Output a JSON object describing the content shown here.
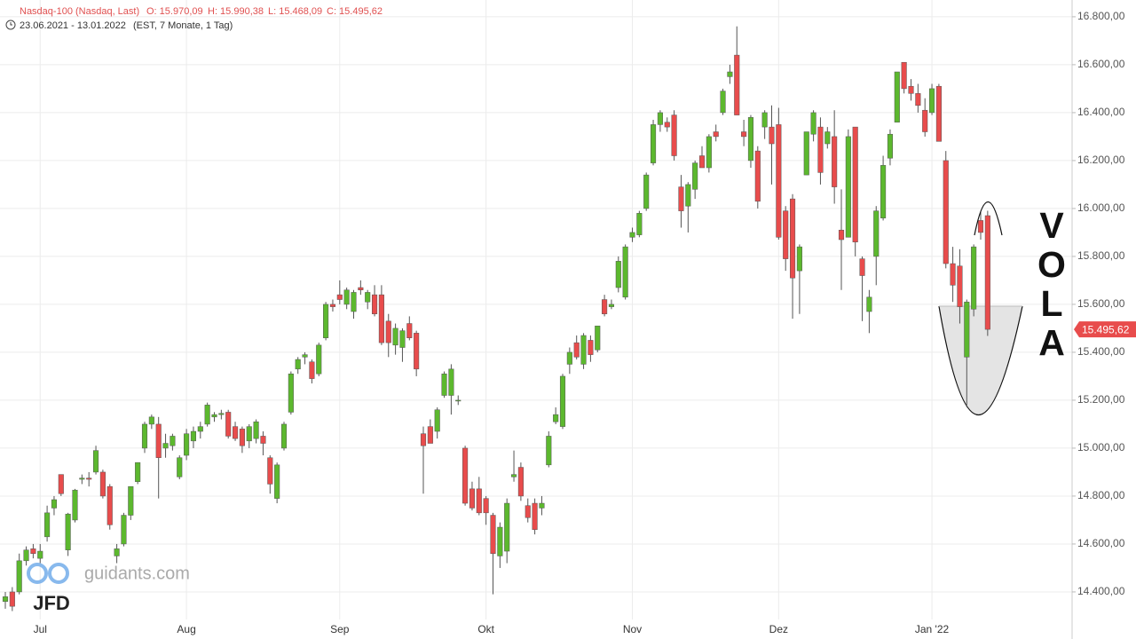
{
  "chart_data": {
    "type": "candlestick",
    "title": "Nasdaq-100 (Nasdaq, Last)",
    "ohlc_labels": [
      "O: 15.970,09",
      "H: 15.990,38",
      "L: 15.468,09",
      "C: 15.495,62"
    ],
    "subtitle": "23.06.2021 - 13.01.2022",
    "subtitle_note": "(EST, 7 Monate, 1 Tag)",
    "annotation": "VOLA",
    "watermark": "guidants.com",
    "logo": "JFD",
    "last_price_label": "15.495,62",
    "up_color": "#5cb82e",
    "down_color": "#e84c4c",
    "grid": true,
    "ylim": [
      14285,
      16870
    ],
    "yticks": [
      {
        "value": 14400,
        "label": "14.400,00"
      },
      {
        "value": 14600,
        "label": "14.600,00"
      },
      {
        "value": 14800,
        "label": "14.800,00"
      },
      {
        "value": 15000,
        "label": "15.000,00"
      },
      {
        "value": 15200,
        "label": "15.200,00"
      },
      {
        "value": 15400,
        "label": "15.400,00"
      },
      {
        "value": 15600,
        "label": "15.600,00"
      },
      {
        "value": 15800,
        "label": "15.800,00"
      },
      {
        "value": 16000,
        "label": "16.000,00"
      },
      {
        "value": 16200,
        "label": "16.200,00"
      },
      {
        "value": 16400,
        "label": "16.400,00"
      },
      {
        "value": 16600,
        "label": "16.600,00"
      },
      {
        "value": 16800,
        "label": "16.800,00"
      }
    ],
    "categories": [
      null,
      null,
      null,
      null,
      null,
      "Jul",
      null,
      null,
      null,
      null,
      null,
      null,
      null,
      null,
      null,
      null,
      null,
      null,
      null,
      null,
      null,
      null,
      null,
      null,
      null,
      null,
      "Aug",
      null,
      null,
      null,
      null,
      null,
      null,
      null,
      null,
      null,
      null,
      null,
      null,
      null,
      null,
      null,
      null,
      null,
      null,
      null,
      null,
      null,
      "Sep",
      null,
      null,
      null,
      null,
      null,
      null,
      null,
      null,
      null,
      null,
      null,
      null,
      null,
      null,
      null,
      null,
      null,
      null,
      null,
      null,
      "Okt",
      null,
      null,
      null,
      null,
      null,
      null,
      null,
      null,
      null,
      null,
      null,
      null,
      null,
      null,
      null,
      null,
      null,
      null,
      null,
      null,
      "Nov",
      null,
      null,
      null,
      null,
      null,
      null,
      null,
      null,
      null,
      null,
      null,
      null,
      null,
      null,
      null,
      null,
      null,
      null,
      null,
      null,
      "Dez",
      null,
      null,
      null,
      null,
      null,
      null,
      null,
      null,
      null,
      null,
      null,
      null,
      null,
      null,
      null,
      null,
      null,
      null,
      null,
      null,
      null,
      "Jan '22",
      null,
      null,
      null,
      null,
      null,
      null,
      null,
      null
    ],
    "ohlc": [
      [
        14360,
        14400,
        14330,
        14380
      ],
      [
        14400,
        14420,
        14320,
        14340
      ],
      [
        14400,
        14560,
        14390,
        14530
      ],
      [
        14530,
        14590,
        14510,
        14575
      ],
      [
        14580,
        14600,
        14540,
        14560
      ],
      [
        14540,
        14600,
        14520,
        14570
      ],
      [
        14630,
        14760,
        14610,
        14730
      ],
      [
        14750,
        14800,
        14720,
        14785
      ],
      [
        14890,
        14890,
        14800,
        14810
      ],
      [
        14575,
        14730,
        14550,
        14725
      ],
      [
        14700,
        14830,
        14690,
        14825
      ],
      [
        14870,
        14890,
        14850,
        14875
      ],
      [
        14875,
        14900,
        14840,
        14870
      ],
      [
        14900,
        15010,
        14890,
        14990
      ],
      [
        14900,
        14910,
        14790,
        14800
      ],
      [
        14840,
        14850,
        14660,
        14680
      ],
      [
        14550,
        14600,
        14520,
        14580
      ],
      [
        14600,
        14730,
        14590,
        14720
      ],
      [
        14720,
        14840,
        14700,
        14840
      ],
      [
        14860,
        14940,
        14850,
        14940
      ],
      [
        15000,
        15110,
        14980,
        15100
      ],
      [
        15100,
        15140,
        15080,
        15130
      ],
      [
        15100,
        15130,
        14790,
        14960
      ],
      [
        15000,
        15060,
        14960,
        15020
      ],
      [
        15010,
        15060,
        14990,
        15050
      ],
      [
        14880,
        14970,
        14870,
        14960
      ],
      [
        14970,
        15080,
        14950,
        15060
      ],
      [
        15030,
        15090,
        15000,
        15070
      ],
      [
        15070,
        15110,
        15040,
        15090
      ],
      [
        15100,
        15190,
        15090,
        15180
      ],
      [
        15130,
        15150,
        15110,
        15140
      ],
      [
        15140,
        15160,
        15120,
        15145
      ],
      [
        15150,
        15160,
        15040,
        15050
      ],
      [
        15090,
        15110,
        15030,
        15040
      ],
      [
        15080,
        15090,
        14980,
        15010
      ],
      [
        15030,
        15100,
        15000,
        15090
      ],
      [
        15040,
        15120,
        15020,
        15110
      ],
      [
        15050,
        15070,
        14970,
        15020
      ],
      [
        14960,
        14970,
        14810,
        14850
      ],
      [
        14790,
        14940,
        14770,
        14930
      ],
      [
        15000,
        15110,
        14990,
        15100
      ],
      [
        15150,
        15320,
        15140,
        15310
      ],
      [
        15330,
        15380,
        15310,
        15370
      ],
      [
        15380,
        15400,
        15350,
        15390
      ],
      [
        15360,
        15370,
        15270,
        15290
      ],
      [
        15310,
        15440,
        15300,
        15430
      ],
      [
        15460,
        15610,
        15450,
        15600
      ],
      [
        15600,
        15620,
        15570,
        15590
      ],
      [
        15640,
        15700,
        15600,
        15620
      ],
      [
        15600,
        15670,
        15580,
        15660
      ],
      [
        15570,
        15660,
        15540,
        15650
      ],
      [
        15670,
        15700,
        15640,
        15660
      ],
      [
        15610,
        15660,
        15580,
        15650
      ],
      [
        15640,
        15680,
        15550,
        15560
      ],
      [
        15640,
        15680,
        15430,
        15440
      ],
      [
        15530,
        15560,
        15380,
        15440
      ],
      [
        15430,
        15520,
        15390,
        15500
      ],
      [
        15420,
        15500,
        15360,
        15490
      ],
      [
        15520,
        15550,
        15450,
        15460
      ],
      [
        15480,
        15490,
        15300,
        15330
      ],
      [
        15060,
        15090,
        14810,
        15010
      ],
      [
        15090,
        15120,
        15020,
        15020
      ],
      [
        15070,
        15170,
        15040,
        15160
      ],
      [
        15220,
        15320,
        15210,
        15310
      ],
      [
        15220,
        15350,
        15140,
        15330
      ],
      [
        15200,
        15220,
        15180,
        15200
      ],
      [
        15000,
        15010,
        14760,
        14770
      ],
      [
        14830,
        14860,
        14740,
        14750
      ],
      [
        14830,
        14880,
        14720,
        14730
      ],
      [
        14790,
        14800,
        14680,
        14730
      ],
      [
        14720,
        14730,
        14390,
        14560
      ],
      [
        14550,
        14690,
        14500,
        14670
      ],
      [
        14570,
        14790,
        14520,
        14770
      ],
      [
        14880,
        14990,
        14860,
        14890
      ],
      [
        14920,
        14940,
        14780,
        14800
      ],
      [
        14760,
        14790,
        14690,
        14710
      ],
      [
        14770,
        14790,
        14640,
        14660
      ],
      [
        14750,
        14800,
        14720,
        14770
      ],
      [
        14930,
        15070,
        14920,
        15050
      ],
      [
        15110,
        15170,
        15100,
        15140
      ],
      [
        15090,
        15310,
        15080,
        15300
      ],
      [
        15350,
        15420,
        15310,
        15400
      ],
      [
        15440,
        15470,
        15370,
        15380
      ],
      [
        15350,
        15480,
        15330,
        15470
      ],
      [
        15450,
        15470,
        15360,
        15390
      ],
      [
        15410,
        15510,
        15400,
        15510
      ],
      [
        15620,
        15640,
        15550,
        15560
      ],
      [
        15590,
        15620,
        15580,
        15600
      ],
      [
        15670,
        15800,
        15650,
        15780
      ],
      [
        15630,
        15850,
        15620,
        15840
      ],
      [
        15880,
        15920,
        15860,
        15900
      ],
      [
        15890,
        15990,
        15880,
        15980
      ],
      [
        16000,
        16150,
        15990,
        16140
      ],
      [
        16190,
        16370,
        16180,
        16350
      ],
      [
        16350,
        16410,
        16320,
        16400
      ],
      [
        16360,
        16380,
        16320,
        16340
      ],
      [
        16390,
        16410,
        16200,
        16220
      ],
      [
        16090,
        16140,
        15920,
        15990
      ],
      [
        16010,
        16110,
        15900,
        16100
      ],
      [
        16080,
        16200,
        16040,
        16190
      ],
      [
        16220,
        16260,
        16170,
        16170
      ],
      [
        16170,
        16310,
        16150,
        16300
      ],
      [
        16320,
        16350,
        16280,
        16300
      ],
      [
        16400,
        16500,
        16390,
        16490
      ],
      [
        16550,
        16600,
        16520,
        16570
      ],
      [
        16640,
        16760,
        16390,
        16390
      ],
      [
        16320,
        16370,
        16260,
        16300
      ],
      [
        16200,
        16390,
        16170,
        16380
      ],
      [
        16240,
        16260,
        16000,
        16030
      ],
      [
        16340,
        16410,
        16290,
        16400
      ],
      [
        16340,
        16430,
        16100,
        16270
      ],
      [
        16350,
        16420,
        15870,
        15880
      ],
      [
        15990,
        16010,
        15740,
        15790
      ],
      [
        16040,
        16060,
        15540,
        15710
      ],
      [
        15740,
        15850,
        15560,
        15840
      ],
      [
        16140,
        16320,
        16140,
        16320
      ],
      [
        16310,
        16410,
        16280,
        16400
      ],
      [
        16340,
        16380,
        16100,
        16150
      ],
      [
        16270,
        16340,
        16250,
        16320
      ],
      [
        16300,
        16410,
        16020,
        16090
      ],
      [
        15910,
        16080,
        15660,
        15870
      ],
      [
        15880,
        16330,
        15880,
        16300
      ],
      [
        16340,
        16340,
        15800,
        15860
      ],
      [
        15790,
        15800,
        15530,
        15720
      ],
      [
        15570,
        15660,
        15480,
        15630
      ],
      [
        15800,
        16010,
        15680,
        15990
      ],
      [
        15960,
        16220,
        15950,
        16180
      ],
      [
        16210,
        16330,
        16180,
        16310
      ],
      [
        16360,
        16570,
        16360,
        16570
      ],
      [
        16610,
        16610,
        16480,
        16500
      ],
      [
        16510,
        16540,
        16450,
        16480
      ],
      [
        16480,
        16520,
        16400,
        16430
      ],
      [
        16410,
        16460,
        16300,
        16320
      ],
      [
        16400,
        16520,
        16390,
        16500
      ],
      [
        16510,
        16520,
        16280,
        16280
      ],
      [
        16200,
        16240,
        15750,
        15770
      ],
      [
        15770,
        15840,
        15610,
        15680
      ],
      [
        15760,
        15830,
        15520,
        15590
      ],
      [
        15380,
        15620,
        15170,
        15610
      ],
      [
        15580,
        15850,
        15550,
        15840
      ],
      [
        15950,
        15990,
        15870,
        15900
      ],
      [
        15970.09,
        15990.38,
        15468.09,
        15495.62
      ]
    ]
  }
}
